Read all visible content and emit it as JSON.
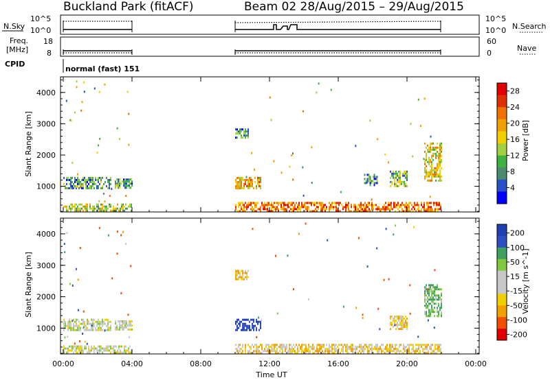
{
  "header": {
    "site_title": "Buckland Park (fitACF)",
    "beam_title": "Beam 02  28/Aug/2015 – 29/Aug/2015"
  },
  "param_panels": {
    "nsky_label": "N.Sky",
    "nsearch_label": "N.Search",
    "log_top_tick": "10^5",
    "log_bottom_tick": "10^0",
    "freq_label_line1": "Freq.",
    "freq_label_line2": "[MHz]",
    "freq_ticks": [
      "18",
      "8"
    ],
    "nave_label": "Nave",
    "nave_ticks": [
      "60",
      "0"
    ],
    "cpid_label": "CPID",
    "cpid_value": "normal (fast) 151"
  },
  "chart_data": [
    {
      "type": "heatmap",
      "name_panel": "power",
      "ylabel": "Slant Range [km]",
      "xlabel": "",
      "ylim": [
        180,
        4500
      ],
      "yticks": [
        "1000",
        "2000",
        "3000",
        "4000"
      ],
      "xticks": [
        "00:00",
        "04:00",
        "08:00",
        "12:00",
        "16:00",
        "20:00",
        "00:00"
      ],
      "colorbar": {
        "label": "Power [dB]",
        "ticks": [
          "4",
          "8",
          "12",
          "16",
          "20",
          "24",
          "28"
        ],
        "range": [
          0,
          30
        ],
        "colors": [
          "#0000ff",
          "#2850c8",
          "#4a8a70",
          "#40b040",
          "#a0d040",
          "#f0d000",
          "#f0a000",
          "#f07000",
          "#e03000",
          "#e00000"
        ]
      },
      "observation_windows_ut": [
        [
          "00:00",
          "04:00"
        ],
        [
          "10:00",
          "22:00"
        ]
      ],
      "echo_regions": [
        {
          "t_start": 0.0,
          "t_end": 4.0,
          "r_min": 200,
          "r_max": 450,
          "level": 14
        },
        {
          "t_start": 0.0,
          "t_end": 2.8,
          "r_min": 950,
          "r_max": 1300,
          "level": 9
        },
        {
          "t_start": 3.0,
          "t_end": 4.0,
          "r_min": 950,
          "r_max": 1250,
          "level": 9
        },
        {
          "t_start": 10.0,
          "t_end": 22.0,
          "r_min": 200,
          "r_max": 500,
          "level": 22
        },
        {
          "t_start": 10.0,
          "t_end": 11.5,
          "r_min": 950,
          "r_max": 1300,
          "level": 18
        },
        {
          "t_start": 10.0,
          "t_end": 10.8,
          "r_min": 2550,
          "r_max": 2850,
          "level": 8
        },
        {
          "t_start": 17.5,
          "t_end": 18.3,
          "r_min": 1050,
          "r_max": 1400,
          "level": 8
        },
        {
          "t_start": 19.0,
          "t_end": 20.0,
          "r_min": 1000,
          "r_max": 1500,
          "level": 11
        },
        {
          "t_start": 21.0,
          "t_end": 22.0,
          "r_min": 1200,
          "r_max": 2400,
          "level": 16
        }
      ]
    },
    {
      "type": "heatmap",
      "name_panel": "velocity",
      "ylabel": "Slant Range [km]",
      "xlabel": "Time UT",
      "ylim": [
        180,
        4500
      ],
      "yticks": [
        "1000",
        "2000",
        "3000",
        "4000"
      ],
      "xticks": [
        "00:00",
        "04:00",
        "08:00",
        "12:00",
        "16:00",
        "20:00",
        "00:00"
      ],
      "colorbar": {
        "label": "Velocity [m s^-1]",
        "ticks": [
          "200",
          "100",
          "50",
          "15",
          "-15",
          "-50",
          "-100",
          "-200"
        ],
        "colors": [
          "#2040b0",
          "#3050c0",
          "#40a060",
          "#80c840",
          "#c8c8c8",
          "#c8c8c8",
          "#f0d000",
          "#f0a000",
          "#f05000",
          "#e00000"
        ]
      },
      "observation_windows_ut": [
        [
          "00:00",
          "04:00"
        ],
        [
          "10:00",
          "22:00"
        ]
      ],
      "echo_regions": [
        {
          "t_start": 0.0,
          "t_end": 4.0,
          "r_min": 200,
          "r_max": 450,
          "level": 0
        },
        {
          "t_start": 0.0,
          "t_end": 2.8,
          "r_min": 950,
          "r_max": 1300,
          "level": 0
        },
        {
          "t_start": 3.0,
          "t_end": 4.0,
          "r_min": 950,
          "r_max": 1250,
          "level": 0
        },
        {
          "t_start": 10.0,
          "t_end": 22.0,
          "r_min": 200,
          "r_max": 500,
          "level": -20
        },
        {
          "t_start": 10.0,
          "t_end": 11.5,
          "r_min": 950,
          "r_max": 1300,
          "level": 150
        },
        {
          "t_start": 10.0,
          "t_end": 10.8,
          "r_min": 2550,
          "r_max": 2850,
          "level": -30
        },
        {
          "t_start": 19.0,
          "t_end": 20.0,
          "r_min": 1000,
          "r_max": 1400,
          "level": -20
        },
        {
          "t_start": 21.0,
          "t_end": 22.0,
          "r_min": 1400,
          "r_max": 2400,
          "level": 30
        }
      ]
    }
  ]
}
